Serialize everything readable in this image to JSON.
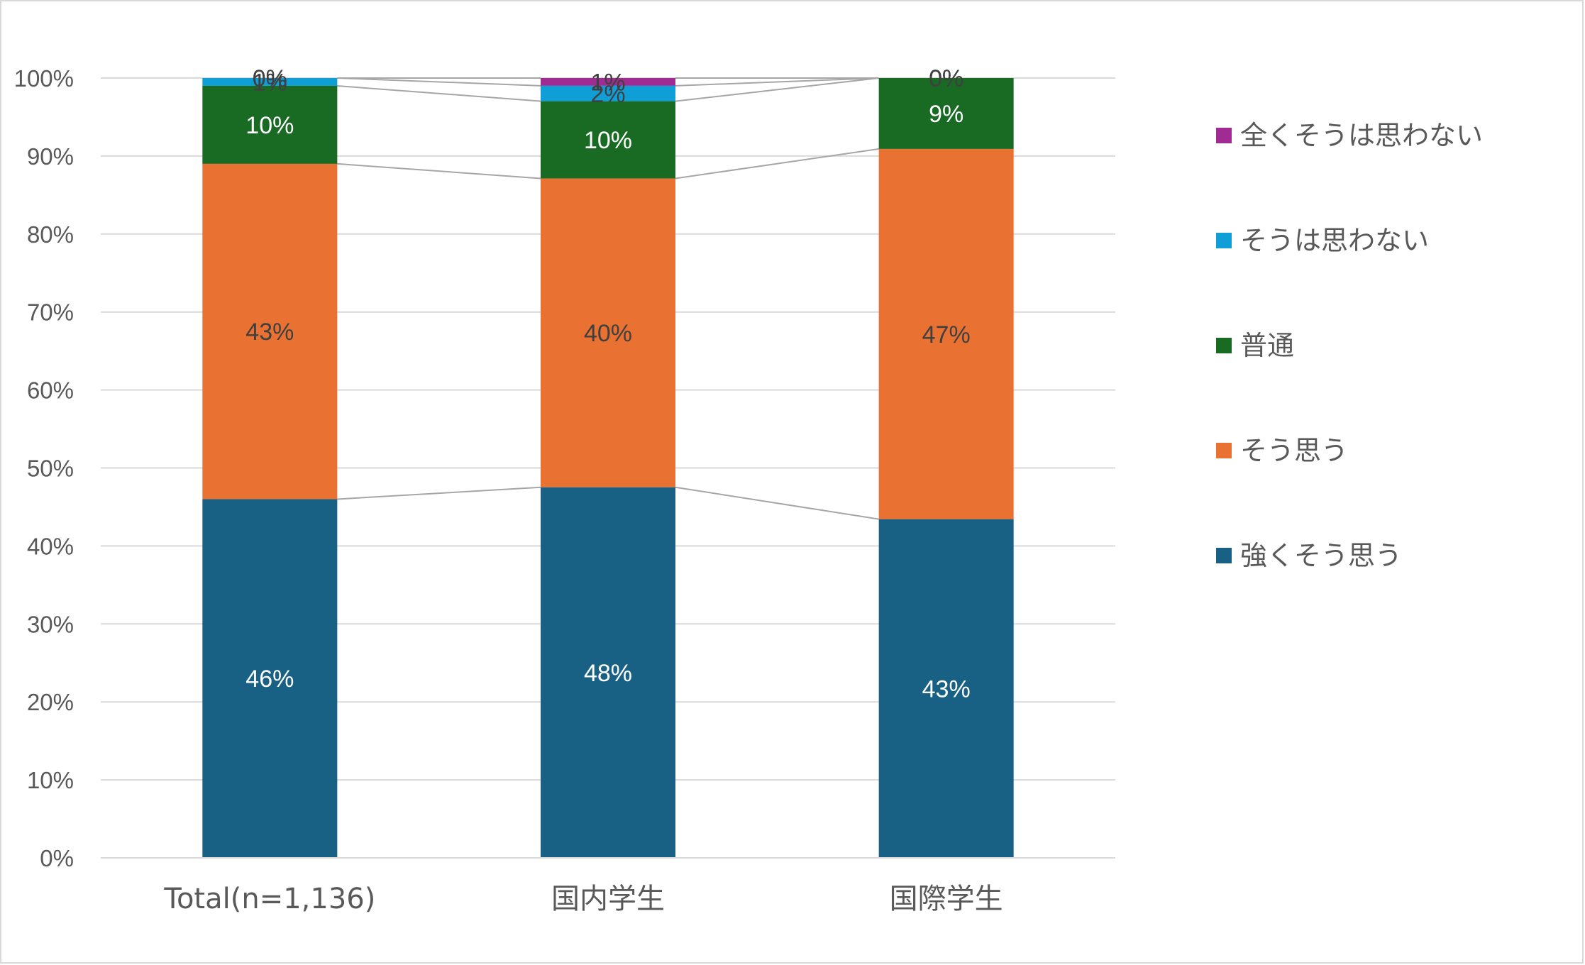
{
  "chart_data": {
    "type": "bar",
    "stacked": true,
    "percent_stacked": true,
    "categories": [
      "Total(n=1,136)",
      "国内学生",
      "国際学生"
    ],
    "series": [
      {
        "name": "強くそう思う",
        "color": "#186185",
        "values": [
          46,
          48,
          43
        ],
        "labels": [
          "46%",
          "48%",
          "43%"
        ],
        "label_color": "#ffffff"
      },
      {
        "name": "そう思う",
        "color": "#E97132",
        "values": [
          43,
          40,
          47
        ],
        "labels": [
          "43%",
          "40%",
          "47%"
        ],
        "label_color": "#404040"
      },
      {
        "name": "普通",
        "color": "#196B24",
        "values": [
          10,
          10,
          9
        ],
        "labels": [
          "10%",
          "10%",
          "9%"
        ],
        "label_color": "#ffffff"
      },
      {
        "name": "そうは思わない",
        "color": "#0F9ED5",
        "values": [
          1,
          2,
          0
        ],
        "labels": [
          "1%",
          "2%",
          "0%"
        ],
        "label_color": "#404040"
      },
      {
        "name": "全くそうは思わない",
        "color": "#A02B93",
        "values": [
          0,
          1,
          0
        ],
        "labels": [
          "0%",
          "1%",
          "0%"
        ],
        "label_color": "#404040"
      }
    ],
    "y_ticks": [
      "0%",
      "10%",
      "20%",
      "30%",
      "40%",
      "50%",
      "60%",
      "70%",
      "80%",
      "90%",
      "100%"
    ],
    "ylim": [
      0,
      100
    ],
    "grid": true,
    "series_lines": true,
    "legend_position": "right",
    "legend_order": [
      "全くそうは思わない",
      "そうは思わない",
      "普通",
      "そう思う",
      "強くそう思う"
    ],
    "gridline_color": "#d9d9d9",
    "series_line_color": "#a6a6a6"
  }
}
